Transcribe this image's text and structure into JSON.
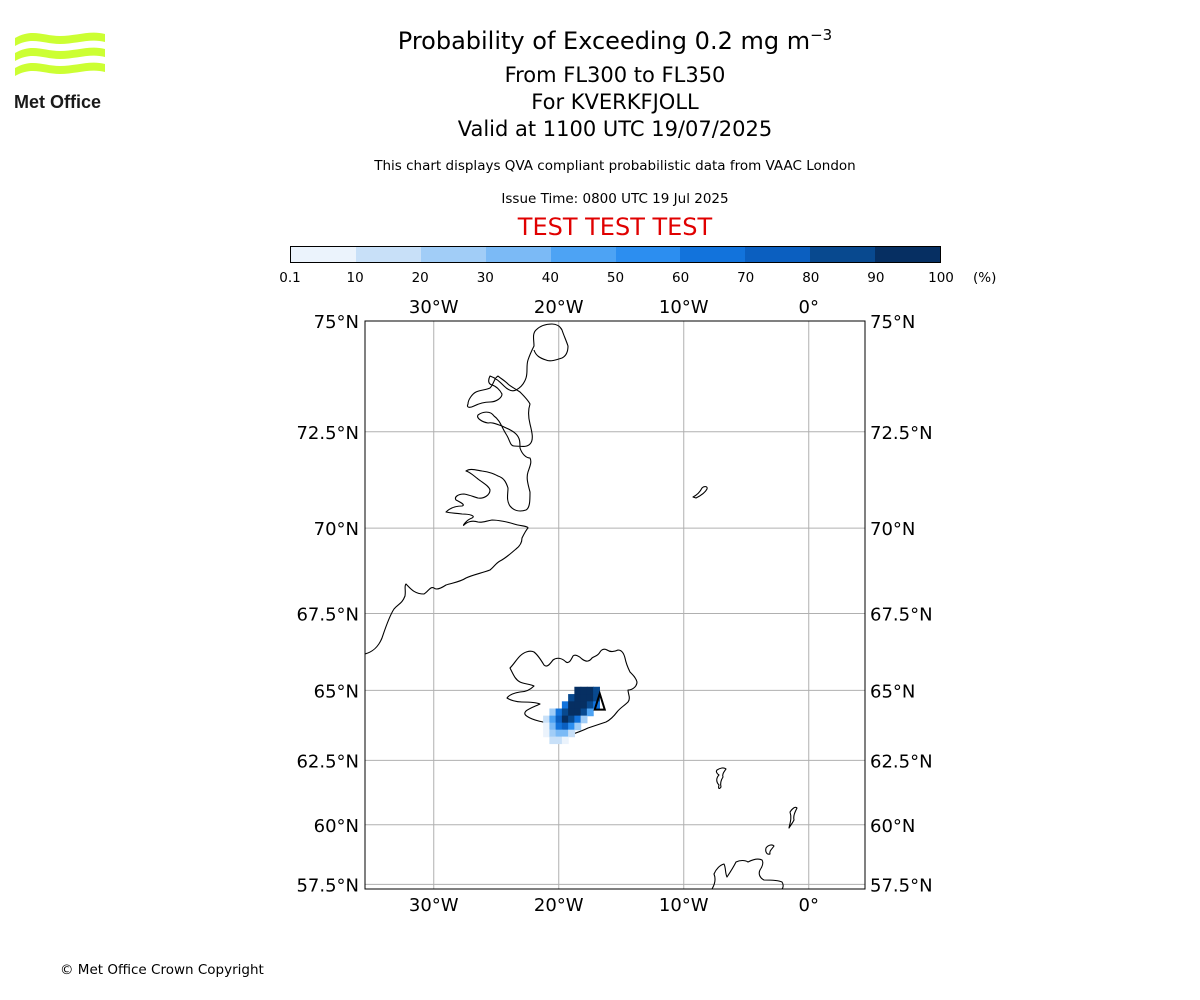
{
  "logo": {
    "text": "Met Office",
    "color": "#ccff33"
  },
  "title": {
    "main": "Probability of Exceeding 0.2 mg m",
    "exponent": "−3"
  },
  "subtitle": {
    "levels": "From FL300 to FL350",
    "volcano": "For KVERKFJOLL",
    "valid": "Valid at 1100 UTC 19/07/2025"
  },
  "description": "This chart displays QVA compliant probabilistic data from VAAC London",
  "issue_time": "Issue Time: 0800 UTC 19 Jul 2025",
  "test_banner": {
    "text": "TEST TEST TEST",
    "color": "#e00000"
  },
  "colorbar": {
    "ticks": [
      "0.1",
      "10",
      "20",
      "30",
      "40",
      "50",
      "60",
      "70",
      "80",
      "90",
      "100"
    ],
    "unit": "(%)",
    "colors": [
      "#ebf3fc",
      "#c8e0f8",
      "#a1cdf7",
      "#7bbaf6",
      "#4da3f4",
      "#2c8ef0",
      "#1273dc",
      "#0b5fc0",
      "#08498f",
      "#062f62"
    ]
  },
  "map": {
    "lon_labels": [
      "30°W",
      "20°W",
      "10°W",
      "0°"
    ],
    "lat_labels": [
      "75°N",
      "72.5°N",
      "70°N",
      "67.5°N",
      "65°N",
      "62.5°N",
      "60°N",
      "57.5°N"
    ],
    "extent": {
      "lon_min": -35.5,
      "lon_max": 4.5,
      "lat_min": 57.3,
      "lat_max": 75
    },
    "volcano": {
      "lon": -16.72,
      "lat": 64.65
    },
    "probability_cells": [
      {
        "lon": -18.5,
        "lat": 65.0,
        "p": 97
      },
      {
        "lon": -18.0,
        "lat": 65.0,
        "p": 97
      },
      {
        "lon": -17.5,
        "lat": 65.0,
        "p": 92
      },
      {
        "lon": -17.0,
        "lat": 65.0,
        "p": 80
      },
      {
        "lon": -19.0,
        "lat": 64.75,
        "p": 85
      },
      {
        "lon": -18.5,
        "lat": 64.75,
        "p": 97
      },
      {
        "lon": -18.0,
        "lat": 64.75,
        "p": 98
      },
      {
        "lon": -17.5,
        "lat": 64.75,
        "p": 95
      },
      {
        "lon": -17.0,
        "lat": 64.75,
        "p": 82
      },
      {
        "lon": -19.5,
        "lat": 64.5,
        "p": 65
      },
      {
        "lon": -19.0,
        "lat": 64.5,
        "p": 92
      },
      {
        "lon": -18.5,
        "lat": 64.5,
        "p": 98
      },
      {
        "lon": -18.0,
        "lat": 64.5,
        "p": 97
      },
      {
        "lon": -17.5,
        "lat": 64.5,
        "p": 88
      },
      {
        "lon": -17.0,
        "lat": 64.5,
        "p": 65
      },
      {
        "lon": -20.5,
        "lat": 64.25,
        "p": 25
      },
      {
        "lon": -20.0,
        "lat": 64.25,
        "p": 65
      },
      {
        "lon": -19.5,
        "lat": 64.25,
        "p": 88
      },
      {
        "lon": -19.0,
        "lat": 64.25,
        "p": 97
      },
      {
        "lon": -18.5,
        "lat": 64.25,
        "p": 95
      },
      {
        "lon": -18.0,
        "lat": 64.25,
        "p": 80
      },
      {
        "lon": -17.5,
        "lat": 64.25,
        "p": 45
      },
      {
        "lon": -21.0,
        "lat": 64.0,
        "p": 15
      },
      {
        "lon": -20.5,
        "lat": 64.0,
        "p": 45
      },
      {
        "lon": -20.0,
        "lat": 64.0,
        "p": 75
      },
      {
        "lon": -19.5,
        "lat": 64.0,
        "p": 92
      },
      {
        "lon": -19.0,
        "lat": 64.0,
        "p": 88
      },
      {
        "lon": -18.5,
        "lat": 64.0,
        "p": 65
      },
      {
        "lon": -18.0,
        "lat": 64.0,
        "p": 25
      },
      {
        "lon": -21.0,
        "lat": 63.75,
        "p": 8
      },
      {
        "lon": -20.5,
        "lat": 63.75,
        "p": 30
      },
      {
        "lon": -20.0,
        "lat": 63.75,
        "p": 65
      },
      {
        "lon": -19.5,
        "lat": 63.75,
        "p": 75
      },
      {
        "lon": -19.0,
        "lat": 63.75,
        "p": 55
      },
      {
        "lon": -18.5,
        "lat": 63.75,
        "p": 25
      },
      {
        "lon": -21.0,
        "lat": 63.5,
        "p": 5
      },
      {
        "lon": -20.5,
        "lat": 63.5,
        "p": 20
      },
      {
        "lon": -20.0,
        "lat": 63.5,
        "p": 35
      },
      {
        "lon": -19.5,
        "lat": 63.5,
        "p": 30
      },
      {
        "lon": -19.0,
        "lat": 63.5,
        "p": 12
      },
      {
        "lon": -20.5,
        "lat": 63.25,
        "p": 10
      },
      {
        "lon": -20.0,
        "lat": 63.25,
        "p": 15
      },
      {
        "lon": -19.5,
        "lat": 63.25,
        "p": 8
      }
    ]
  },
  "copyright": "© Met Office Crown Copyright"
}
